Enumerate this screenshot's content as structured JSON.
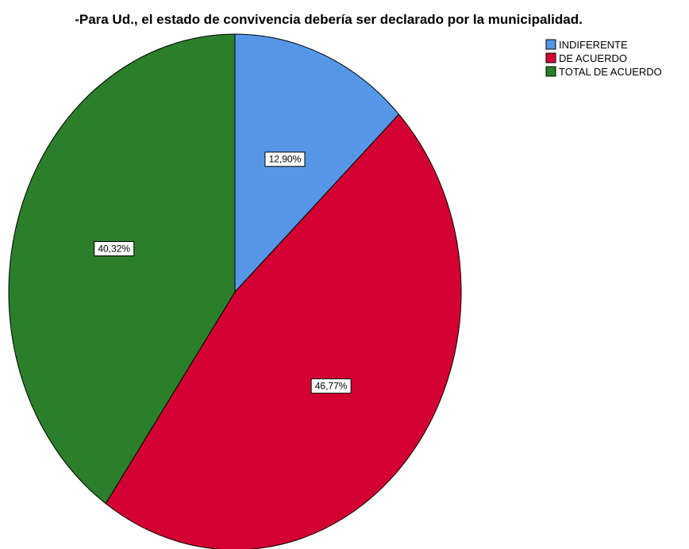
{
  "chart_data": {
    "type": "pie",
    "title": "-Para Ud., el estado de convivencia debería ser declarado por la municipalidad.",
    "legend_position": "top-right",
    "slices": [
      {
        "label": "INDIFERENTE",
        "value": 12.9,
        "display": "12,90%",
        "color": "#5596e6"
      },
      {
        "label": "DE ACUERDO",
        "value": 46.77,
        "display": "46,77%",
        "color": "#d20131"
      },
      {
        "label": "TOTAL DE ACUERDO",
        "value": 40.32,
        "display": "40,32%",
        "color": "#2b7f2b"
      }
    ]
  }
}
